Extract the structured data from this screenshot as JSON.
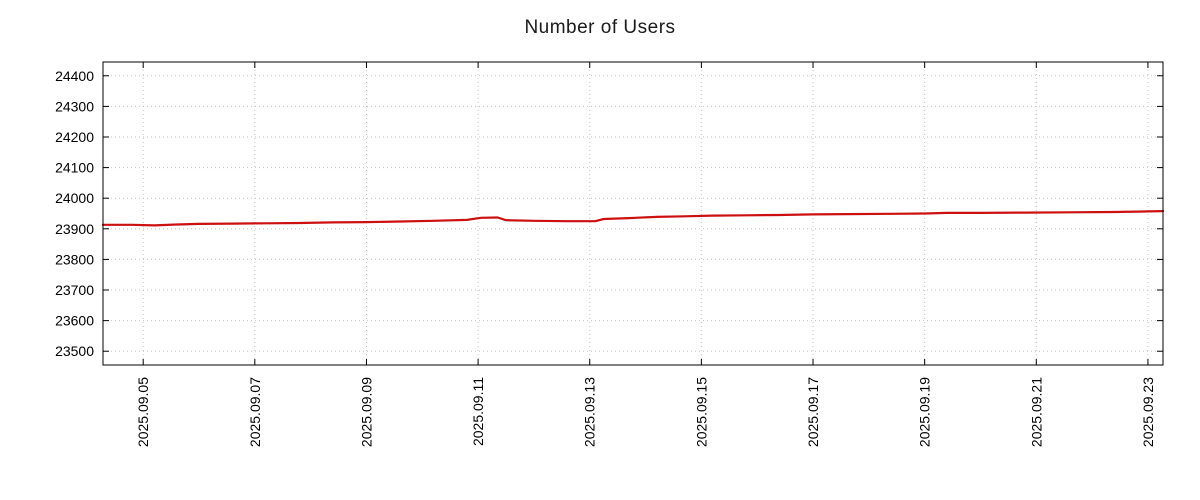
{
  "title": "Number of Users",
  "chart_data": {
    "type": "line",
    "title": "Number of Users",
    "x_unit": "date",
    "grid": "dotted",
    "legend": "none",
    "axis_color": "#000000",
    "grid_color": "#c4c4c4",
    "x_range": [
      4.28,
      23.27
    ],
    "y_range": [
      23455,
      24445
    ],
    "y_ticks": [
      23500,
      23600,
      23700,
      23800,
      23900,
      24000,
      24100,
      24200,
      24300,
      24400
    ],
    "x_tick_positions": [
      5,
      7,
      9,
      11,
      13,
      15,
      17,
      19,
      21,
      23
    ],
    "x_tick_labels": [
      "2025.09.05",
      "2025.09.07",
      "2025.09.09",
      "2025.09.11",
      "2025.09.13",
      "2025.09.15",
      "2025.09.17",
      "2025.09.19",
      "2025.09.21",
      "2025.09.23"
    ],
    "series": [
      {
        "name": "Number of Users",
        "color": "#cc1010",
        "points": [
          [
            4.28,
            23913
          ],
          [
            4.8,
            23913
          ],
          [
            5.2,
            23911
          ],
          [
            5.6,
            23914
          ],
          [
            6.0,
            23916
          ],
          [
            6.6,
            23917
          ],
          [
            7.2,
            23918
          ],
          [
            7.8,
            23919
          ],
          [
            8.4,
            23921
          ],
          [
            9.0,
            23922
          ],
          [
            9.6,
            23924
          ],
          [
            10.2,
            23926
          ],
          [
            10.8,
            23929
          ],
          [
            11.05,
            23936
          ],
          [
            11.35,
            23937
          ],
          [
            11.5,
            23928
          ],
          [
            12.0,
            23926
          ],
          [
            12.6,
            23925
          ],
          [
            13.1,
            23925
          ],
          [
            13.25,
            23932
          ],
          [
            13.7,
            23935
          ],
          [
            14.2,
            23939
          ],
          [
            14.7,
            23941
          ],
          [
            15.2,
            23943
          ],
          [
            15.8,
            23944
          ],
          [
            16.4,
            23945
          ],
          [
            17.0,
            23947
          ],
          [
            17.6,
            23948
          ],
          [
            18.4,
            23949
          ],
          [
            19.0,
            23950
          ],
          [
            19.4,
            23952
          ],
          [
            20.0,
            23952
          ],
          [
            20.8,
            23953
          ],
          [
            21.6,
            23954
          ],
          [
            22.4,
            23955
          ],
          [
            23.0,
            23957
          ],
          [
            23.27,
            23958
          ]
        ]
      }
    ]
  }
}
